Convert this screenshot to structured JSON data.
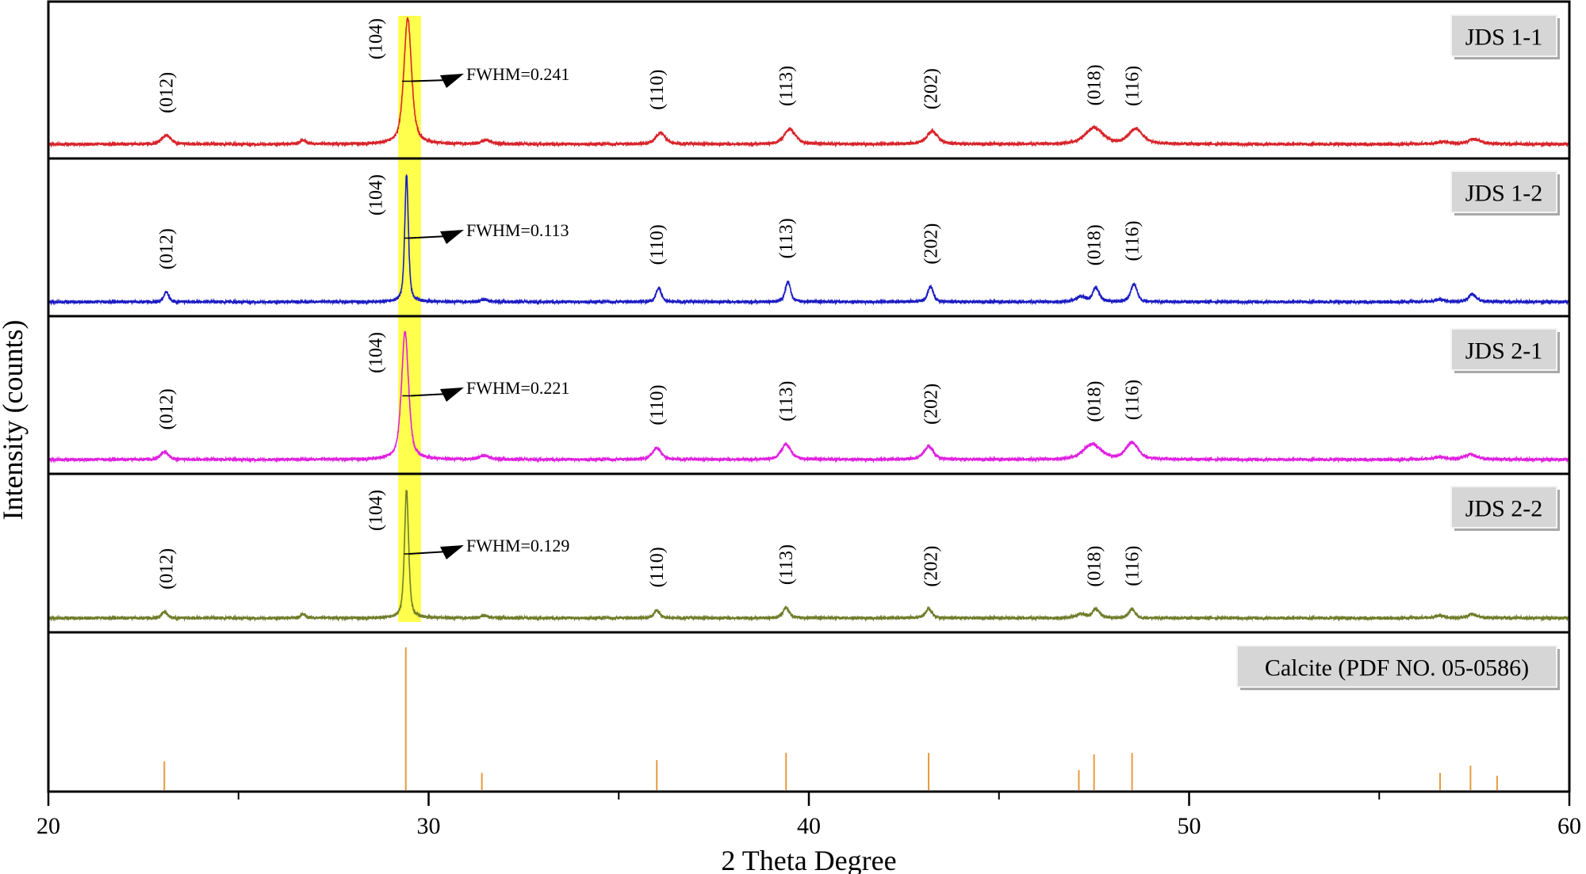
{
  "chart_data": {
    "type": "line",
    "xlabel": "2 Theta Degree",
    "ylabel": "Intensity (counts)",
    "xlim": [
      20,
      60
    ],
    "xticks": [
      20,
      30,
      40,
      50,
      60
    ],
    "minor_xticks": [
      25,
      35,
      45,
      55
    ],
    "grid": false,
    "highlight_band": {
      "x": [
        29.2,
        29.8
      ],
      "color": "#ffff4d"
    },
    "panels": [
      {
        "name": "JDS 1-1",
        "color": "#d8232a",
        "fwhm_label": "FWHM=0.241",
        "width": 0.24,
        "peaks": [
          [
            23.1,
            0.07,
            0.3
          ],
          [
            26.7,
            0.03,
            0.2
          ],
          [
            29.45,
            1.0,
            0.24
          ],
          [
            31.5,
            0.03,
            0.3
          ],
          [
            36.1,
            0.09,
            0.3
          ],
          [
            39.5,
            0.12,
            0.35
          ],
          [
            43.25,
            0.1,
            0.35
          ],
          [
            47.5,
            0.13,
            0.55
          ],
          [
            48.6,
            0.12,
            0.45
          ],
          [
            56.7,
            0.02,
            0.4
          ],
          [
            57.5,
            0.04,
            0.4
          ]
        ]
      },
      {
        "name": "JDS 1-2",
        "color": "#1c1cc4",
        "fwhm_label": "FWHM=0.113",
        "width": 0.113,
        "peaks": [
          [
            23.1,
            0.08,
            0.15
          ],
          [
            29.42,
            1.0,
            0.113
          ],
          [
            31.45,
            0.02,
            0.2
          ],
          [
            36.05,
            0.11,
            0.16
          ],
          [
            39.45,
            0.16,
            0.16
          ],
          [
            43.2,
            0.12,
            0.17
          ],
          [
            47.15,
            0.04,
            0.3
          ],
          [
            47.55,
            0.11,
            0.2
          ],
          [
            48.55,
            0.14,
            0.2
          ],
          [
            56.6,
            0.02,
            0.3
          ],
          [
            57.45,
            0.06,
            0.25
          ]
        ]
      },
      {
        "name": "JDS 2-1",
        "color": "#e020e0",
        "fwhm_label": "FWHM=0.221",
        "width": 0.221,
        "peaks": [
          [
            23.05,
            0.06,
            0.25
          ],
          [
            29.38,
            1.0,
            0.221
          ],
          [
            31.45,
            0.03,
            0.3
          ],
          [
            36.0,
            0.09,
            0.28
          ],
          [
            39.4,
            0.12,
            0.3
          ],
          [
            43.15,
            0.1,
            0.3
          ],
          [
            47.45,
            0.12,
            0.55
          ],
          [
            48.5,
            0.13,
            0.4
          ],
          [
            56.6,
            0.02,
            0.4
          ],
          [
            57.4,
            0.04,
            0.4
          ]
        ]
      },
      {
        "name": "JDS 2-2",
        "color": "#6f7d2a",
        "fwhm_label": "FWHM=0.129",
        "width": 0.129,
        "peaks": [
          [
            23.05,
            0.05,
            0.17
          ],
          [
            26.7,
            0.03,
            0.15
          ],
          [
            29.42,
            1.0,
            0.129
          ],
          [
            31.45,
            0.02,
            0.2
          ],
          [
            36.0,
            0.06,
            0.18
          ],
          [
            39.4,
            0.08,
            0.2
          ],
          [
            43.15,
            0.07,
            0.2
          ],
          [
            47.15,
            0.03,
            0.3
          ],
          [
            47.55,
            0.07,
            0.22
          ],
          [
            48.5,
            0.07,
            0.2
          ],
          [
            56.6,
            0.02,
            0.3
          ],
          [
            57.45,
            0.03,
            0.3
          ]
        ]
      }
    ],
    "hkl_labels": [
      {
        "label": "(012)",
        "x": 23.1
      },
      {
        "label": "(104)",
        "x": 29.4
      },
      {
        "label": "(110)",
        "x": 36.0
      },
      {
        "label": "(113)",
        "x": 39.4
      },
      {
        "label": "(202)",
        "x": 43.2
      },
      {
        "label": "(018)",
        "x": 47.5
      },
      {
        "label": "(116)",
        "x": 48.5
      }
    ],
    "reference": {
      "name": "Calcite (PDF NO. 05-0586)",
      "color": "#e89a3c",
      "sticks": [
        [
          23.05,
          0.2
        ],
        [
          29.4,
          1.0
        ],
        [
          31.4,
          0.12
        ],
        [
          36.0,
          0.21
        ],
        [
          39.4,
          0.26
        ],
        [
          43.15,
          0.26
        ],
        [
          47.1,
          0.14
        ],
        [
          47.5,
          0.25
        ],
        [
          48.5,
          0.26
        ],
        [
          56.6,
          0.12
        ],
        [
          57.4,
          0.17
        ],
        [
          58.1,
          0.1
        ]
      ]
    }
  }
}
